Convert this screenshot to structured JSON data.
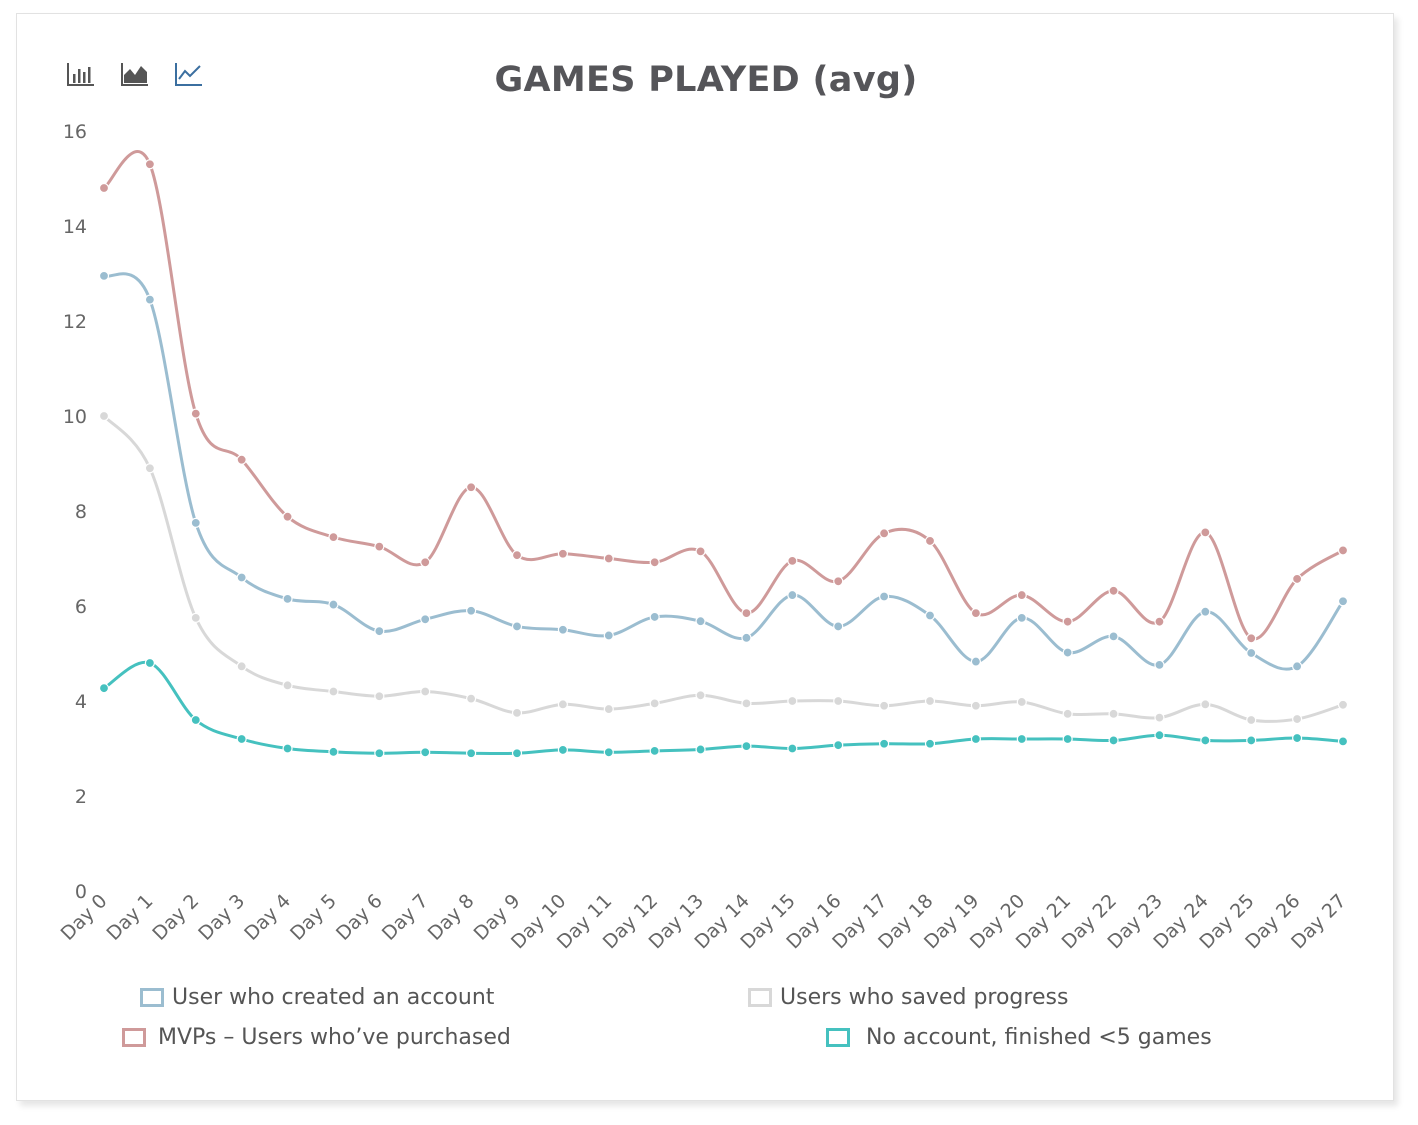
{
  "toolbar": {
    "icons": [
      "bar-chart-icon",
      "area-chart-icon",
      "line-chart-icon"
    ],
    "active": "line-chart-icon"
  },
  "chart_data": {
    "type": "line",
    "title": "GAMES PLAYED (avg)",
    "xlabel": "",
    "ylabel": "",
    "ylim": [
      0,
      16
    ],
    "yticks": [
      0,
      2,
      4,
      6,
      8,
      10,
      12,
      14,
      16
    ],
    "grid": false,
    "legend_position": "bottom",
    "categories": [
      "Day 0",
      "Day 1",
      "Day 2",
      "Day 3",
      "Day 4",
      "Day 5",
      "Day 6",
      "Day 7",
      "Day 8",
      "Day 9",
      "Day 10",
      "Day 11",
      "Day 12",
      "Day 13",
      "Day 14",
      "Day 15",
      "Day 16",
      "Day 17",
      "Day 18",
      "Day 19",
      "Day 20",
      "Day 21",
      "Day 22",
      "Day 23",
      "Day 24",
      "Day 25",
      "Day 26",
      "Day 27"
    ],
    "series": [
      {
        "name": "User who created an account",
        "color": "#9bbdd0",
        "values": [
          12.95,
          12.45,
          7.75,
          6.6,
          6.15,
          6.03,
          5.47,
          5.72,
          5.9,
          5.57,
          5.5,
          5.38,
          5.77,
          5.68,
          5.33,
          6.23,
          5.57,
          6.2,
          5.8,
          4.83,
          5.75,
          5.02,
          5.36,
          4.76,
          5.88,
          5.01,
          4.73,
          6.1
        ]
      },
      {
        "name": "MVPs – Users who’ve purchased",
        "color": "#cf9a9a",
        "values": [
          14.8,
          15.3,
          10.05,
          9.08,
          7.88,
          7.45,
          7.25,
          6.92,
          8.5,
          7.07,
          7.1,
          7.0,
          6.92,
          7.15,
          5.85,
          6.95,
          6.52,
          7.53,
          7.37,
          5.85,
          6.23,
          5.67,
          6.32,
          5.67,
          7.55,
          5.32,
          6.57,
          7.17
        ]
      },
      {
        "name": "Users who saved progress",
        "color": "#d8d8d8",
        "values": [
          10.0,
          8.9,
          5.75,
          4.73,
          4.33,
          4.2,
          4.1,
          4.2,
          4.05,
          3.75,
          3.93,
          3.83,
          3.95,
          4.12,
          3.95,
          4.0,
          4.0,
          3.9,
          4.0,
          3.9,
          3.98,
          3.73,
          3.73,
          3.65,
          3.93,
          3.6,
          3.62,
          3.92
        ]
      },
      {
        "name": "No account, finished <5 games",
        "color": "#45c1bf",
        "values": [
          4.27,
          4.8,
          3.6,
          3.2,
          3.0,
          2.93,
          2.9,
          2.92,
          2.9,
          2.9,
          2.97,
          2.92,
          2.95,
          2.98,
          3.05,
          3.0,
          3.07,
          3.1,
          3.1,
          3.2,
          3.2,
          3.2,
          3.17,
          3.28,
          3.17,
          3.17,
          3.22,
          3.15
        ]
      }
    ]
  }
}
